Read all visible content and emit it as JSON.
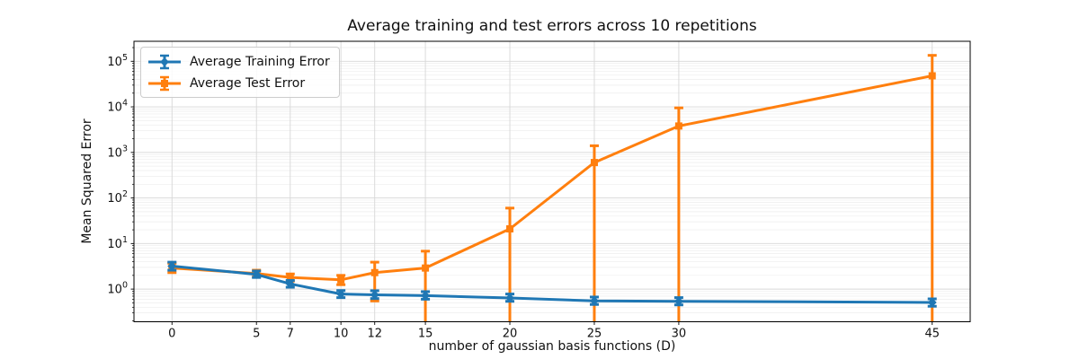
{
  "chart_data": {
    "type": "line",
    "title": "Average training and test errors across 10 repetitions",
    "xlabel": "number of gaussian basis functions (D)",
    "ylabel": "Mean Squared Error",
    "yscale": "log",
    "x": [
      0,
      5,
      7,
      10,
      12,
      15,
      20,
      25,
      30,
      45
    ],
    "xlim": [
      0,
      45
    ],
    "x_margin_frac": 0.05,
    "ylim": [
      0.192,
      275000
    ],
    "y_major_exponents": [
      0,
      1,
      2,
      3,
      4,
      5
    ],
    "grid": {
      "major": true,
      "minor": true
    },
    "legend_position": "upper-left",
    "colors": {
      "grid_major": "#d7d7d7",
      "grid_minor": "#ededed",
      "spine": "#000000",
      "text": "#111111"
    },
    "series": [
      {
        "name": "Average Training Error",
        "color": "#1f77b4",
        "marker": "diamond",
        "z": 3,
        "mean": [
          3.2,
          2.1,
          1.3,
          0.78,
          0.75,
          0.72,
          0.64,
          0.55,
          0.54,
          0.51
        ],
        "err_hi": [
          3.9,
          2.5,
          1.55,
          0.93,
          0.92,
          0.88,
          0.78,
          0.67,
          0.65,
          0.61
        ],
        "err_lo": [
          2.6,
          1.8,
          1.1,
          0.65,
          0.62,
          0.6,
          0.54,
          0.46,
          0.45,
          0.42
        ]
      },
      {
        "name": "Average Test Error",
        "color": "#ff7f0e",
        "marker": "square",
        "z": 2,
        "mean": [
          2.9,
          2.2,
          1.8,
          1.6,
          2.3,
          2.9,
          21,
          600,
          3800,
          48000
        ],
        "err_hi": [
          3.7,
          2.6,
          2.15,
          2.0,
          3.9,
          6.8,
          60,
          1400,
          9500,
          135000
        ],
        "err_lo": [
          2.3,
          1.85,
          1.5,
          1.25,
          0.55,
          null,
          null,
          null,
          null,
          null
        ]
      }
    ]
  }
}
